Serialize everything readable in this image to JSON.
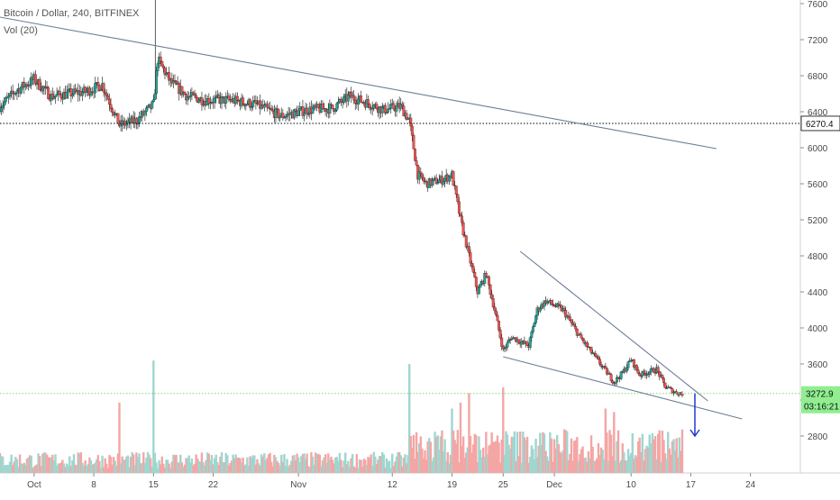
{
  "header": {
    "symbol_line": "Bitcoin / Dollar, 240, BITFINEX",
    "indicator_line": "Vol (20)"
  },
  "colors": {
    "up": "#26a69a",
    "down": "#ef5350",
    "vol_up": "#9fd6d0",
    "vol_down": "#f4a6a4",
    "trendline": "#6b7e99",
    "support_line": "#7ad97a",
    "price_badge": "#ffffff",
    "support_badge": "#90ee90",
    "arrow": "#1f3ccc"
  },
  "chart_data": {
    "type": "candlestick",
    "title": "",
    "xlabel": "",
    "ylabel": "",
    "y_ticks": [
      2800,
      3200,
      3600,
      4000,
      4400,
      4800,
      5200,
      5600,
      6000,
      6400,
      6800,
      7200,
      7600
    ],
    "ylim": [
      2400,
      7800
    ],
    "x_ticks": [
      {
        "label": "Oct",
        "date": "2018-10-01"
      },
      {
        "label": "8",
        "date": "2018-10-08"
      },
      {
        "label": "15",
        "date": "2018-10-15"
      },
      {
        "label": "22",
        "date": "2018-10-22"
      },
      {
        "label": "Nov",
        "date": "2018-11-01"
      },
      {
        "label": "12",
        "date": "2018-11-12"
      },
      {
        "label": "19",
        "date": "2018-11-19"
      },
      {
        "label": "25",
        "date": "2018-11-25"
      },
      {
        "label": "Dec",
        "date": "2018-12-01"
      },
      {
        "label": "10",
        "date": "2018-12-10"
      },
      {
        "label": "17",
        "date": "2018-12-17"
      },
      {
        "label": "24",
        "date": "2018-12-24"
      }
    ],
    "xlim": [
      "2018-09-27",
      "2018-12-29"
    ],
    "price_path": [
      [
        "2018-09-27",
        6460
      ],
      [
        "2018-09-29",
        6640
      ],
      [
        "2018-10-01",
        6760
      ],
      [
        "2018-10-03",
        6570
      ],
      [
        "2018-10-05",
        6600
      ],
      [
        "2018-10-07",
        6620
      ],
      [
        "2018-10-09",
        6700
      ],
      [
        "2018-10-11",
        6250
      ],
      [
        "2018-10-13",
        6300
      ],
      [
        "2018-10-15",
        6480
      ],
      [
        "2018-10-15T12",
        6980
      ],
      [
        "2018-10-17",
        6730
      ],
      [
        "2018-10-19",
        6570
      ],
      [
        "2018-10-21",
        6530
      ],
      [
        "2018-10-24",
        6530
      ],
      [
        "2018-10-27",
        6480
      ],
      [
        "2018-10-30",
        6350
      ],
      [
        "2018-11-02",
        6420
      ],
      [
        "2018-11-05",
        6440
      ],
      [
        "2018-11-07",
        6570
      ],
      [
        "2018-11-09",
        6500
      ],
      [
        "2018-11-11",
        6420
      ],
      [
        "2018-11-13",
        6460
      ],
      [
        "2018-11-14",
        6300
      ],
      [
        "2018-11-15",
        5700
      ],
      [
        "2018-11-16",
        5600
      ],
      [
        "2018-11-18",
        5650
      ],
      [
        "2018-11-19",
        5700
      ],
      [
        "2018-11-20",
        5200
      ],
      [
        "2018-11-21",
        4800
      ],
      [
        "2018-11-22",
        4400
      ],
      [
        "2018-11-23",
        4600
      ],
      [
        "2018-11-24",
        4200
      ],
      [
        "2018-11-25",
        3750
      ],
      [
        "2018-11-26",
        3900
      ],
      [
        "2018-11-28",
        3800
      ],
      [
        "2018-11-29",
        4200
      ],
      [
        "2018-11-30",
        4300
      ],
      [
        "2018-12-02",
        4200
      ],
      [
        "2018-12-04",
        3900
      ],
      [
        "2018-12-06",
        3650
      ],
      [
        "2018-12-08",
        3400
      ],
      [
        "2018-12-09",
        3500
      ],
      [
        "2018-12-10",
        3650
      ],
      [
        "2018-12-11",
        3480
      ],
      [
        "2018-12-13",
        3540
      ],
      [
        "2018-12-14",
        3350
      ],
      [
        "2018-12-15",
        3290
      ],
      [
        "2018-12-16",
        3270
      ]
    ],
    "spike_high": {
      "date": "2018-10-15",
      "value": 7800
    },
    "trendlines": [
      {
        "name": "upper-trendline",
        "from": [
          "2018-09-27",
          7450
        ],
        "to": [
          "2018-12-20",
          5990
        ]
      },
      {
        "name": "wedge-top",
        "from": [
          "2018-11-27",
          4850
        ],
        "to": [
          "2018-12-19",
          3190
        ]
      },
      {
        "name": "wedge-bottom",
        "from": [
          "2018-11-25",
          3680
        ],
        "to": [
          "2018-12-23",
          2990
        ]
      }
    ],
    "hlines": [
      {
        "name": "resistance-line",
        "value": 6270.4,
        "style": "dotted",
        "color": "#000000"
      },
      {
        "name": "support-line",
        "value": 3272.9,
        "style": "dotted",
        "color": "#7ad97a"
      }
    ],
    "price_badges": [
      {
        "name": "resistance-price-badge",
        "value": "6270.4"
      },
      {
        "name": "support-price-badge",
        "value": "3272.9",
        "countdown": "03:16:21"
      }
    ],
    "arrow": {
      "from": [
        "2018-12-16",
        3272.9
      ],
      "to": [
        "2018-12-16",
        2800
      ],
      "direction": "down"
    },
    "volume": {
      "tall_bars": [
        {
          "date": "2018-10-15",
          "height": 0.96,
          "up": true
        },
        {
          "date": "2018-10-11",
          "height": 0.6,
          "up": false
        },
        {
          "date": "2018-11-14",
          "height": 0.93,
          "up": false
        },
        {
          "date": "2018-11-19",
          "height": 0.55,
          "up": false
        },
        {
          "date": "2018-11-20",
          "height": 0.6,
          "up": true
        },
        {
          "date": "2018-11-21",
          "height": 0.68,
          "up": false
        },
        {
          "date": "2018-11-25",
          "height": 0.73,
          "up": false
        },
        {
          "date": "2018-12-07",
          "height": 0.55,
          "up": false
        },
        {
          "date": "2018-12-08",
          "height": 0.52,
          "up": true
        }
      ]
    }
  }
}
